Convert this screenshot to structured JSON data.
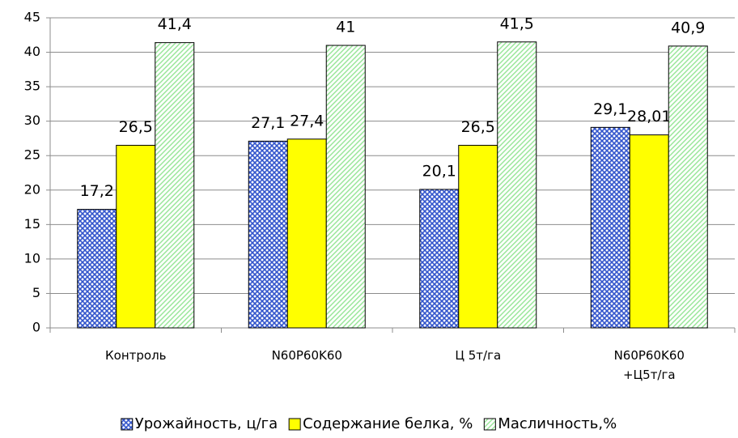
{
  "chart_data": {
    "type": "bar",
    "categories": [
      "Контроль",
      "N60P60K60",
      "Ц 5т/га",
      "N60P60K60 +Ц5т/га"
    ],
    "series": [
      {
        "name": "Урожайность, ц/га",
        "color": "#3355cc",
        "pattern": "crosshatch",
        "values": [
          17.2,
          27.1,
          20.1,
          29.1
        ],
        "value_labels": [
          "17,2",
          "27,1",
          "20,1",
          "29,1"
        ]
      },
      {
        "name": "Содержание белка, %",
        "color": "#ffff00",
        "pattern": "solid",
        "values": [
          26.5,
          27.4,
          26.5,
          28.01
        ],
        "value_labels": [
          "26,5",
          "27,4",
          "26,5",
          "28,01"
        ]
      },
      {
        "name": "Масличность,%",
        "color": "#99e699",
        "pattern": "diagonal",
        "values": [
          41.4,
          41,
          41.5,
          40.9
        ],
        "value_labels": [
          "41,4",
          "41",
          "41,5",
          "40,9"
        ]
      }
    ],
    "ylim": [
      0,
      45
    ],
    "yticks": [
      0,
      5,
      10,
      15,
      20,
      25,
      30,
      35,
      40,
      45
    ],
    "grid": true,
    "legend": "bottom"
  }
}
